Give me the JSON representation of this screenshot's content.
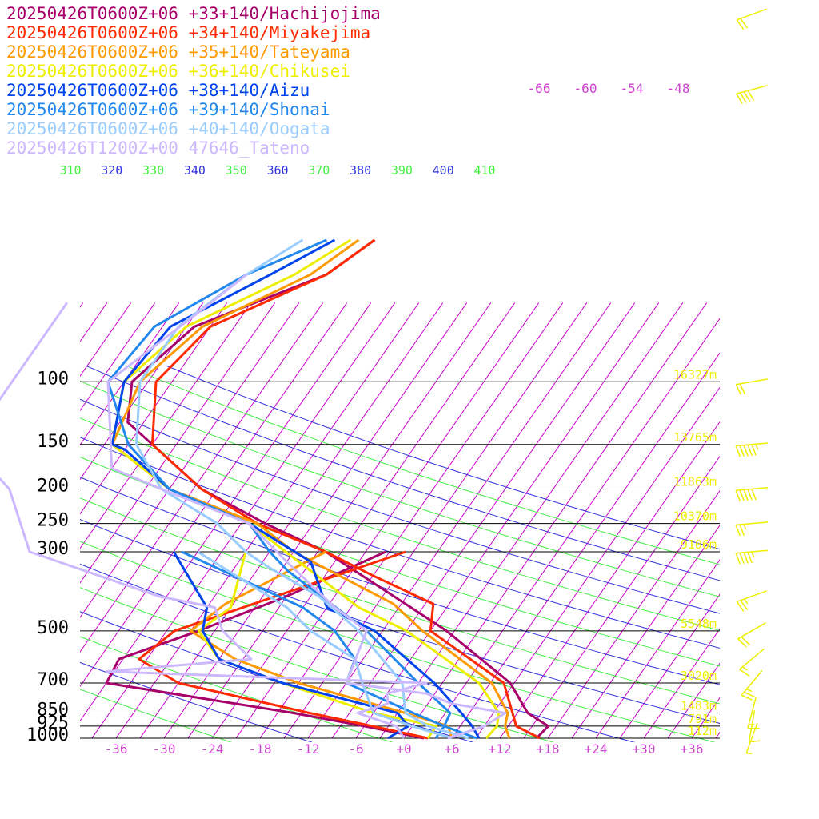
{
  "chart_data": {
    "type": "line",
    "diagram": "skew-T log-P",
    "legend_position": "top-left",
    "legend": [
      {
        "name": "20250426T0600Z+06 +33+140/Hachijojima",
        "color": "#a8006a"
      },
      {
        "name": "20250426T0600Z+06 +34+140/Miyakejima",
        "color": "#ff2a00"
      },
      {
        "name": "20250426T0600Z+06 +35+140/Tateyama",
        "color": "#ff9900"
      },
      {
        "name": "20250426T0600Z+06 +36+140/Chikusei",
        "color": "#eeee00"
      },
      {
        "name": "20250426T0600Z+06 +38+140/Aizu",
        "color": "#0044ee"
      },
      {
        "name": "20250426T0600Z+06 +39+140/Shonai",
        "color": "#2288ee"
      },
      {
        "name": "20250426T0600Z+06 +40+140/Oogata",
        "color": "#99ccff"
      },
      {
        "name": "20250426T1200Z+00 47646_Tateno",
        "color": "#ccb8ff"
      }
    ],
    "pressure_levels": [
      {
        "p": 100,
        "label": "100",
        "height": "16327m"
      },
      {
        "p": 150,
        "label": "150",
        "height": "13765m"
      },
      {
        "p": 200,
        "label": "200",
        "height": "11863m"
      },
      {
        "p": 250,
        "label": "250",
        "height": "10370m"
      },
      {
        "p": 300,
        "label": "300",
        "height": "9106m"
      },
      {
        "p": 500,
        "label": "500",
        "height": "5548m"
      },
      {
        "p": 700,
        "label": "700",
        "height": "3020m"
      },
      {
        "p": 850,
        "label": "850",
        "height": "1483m"
      },
      {
        "p": 925,
        "label": "925",
        "height": "791m"
      },
      {
        "p": 1000,
        "label": "1000",
        "height": "112m"
      }
    ],
    "x_axis": {
      "title": "",
      "ticks": [
        {
          "v": -36,
          "label": "-36"
        },
        {
          "v": -30,
          "label": "-30"
        },
        {
          "v": -24,
          "label": "-24"
        },
        {
          "v": -18,
          "label": "-18"
        },
        {
          "v": -12,
          "label": "-12"
        },
        {
          "v": -6,
          "label": "-6"
        },
        {
          "v": 0,
          "label": "+0"
        },
        {
          "v": 6,
          "label": "+6"
        },
        {
          "v": 12,
          "label": "+12"
        },
        {
          "v": 18,
          "label": "+18"
        },
        {
          "v": 24,
          "label": "+24"
        },
        {
          "v": 30,
          "label": "+30"
        },
        {
          "v": 36,
          "label": "+36"
        }
      ],
      "range": [
        -40,
        40
      ]
    },
    "upper_temperature_labels": [
      {
        "v": -66,
        "label": "-66"
      },
      {
        "v": -60,
        "label": "-60"
      },
      {
        "v": -54,
        "label": "-54"
      },
      {
        "v": -48,
        "label": "-48"
      }
    ],
    "theta_labels": [
      {
        "label": "310",
        "color": "#44ee44"
      },
      {
        "label": "320",
        "color": "#3333dd"
      },
      {
        "label": "330",
        "color": "#44ee44"
      },
      {
        "label": "340",
        "color": "#3333dd"
      },
      {
        "label": "350",
        "color": "#44ee44"
      },
      {
        "label": "360",
        "color": "#3333dd"
      },
      {
        "label": "370",
        "color": "#44ee44"
      },
      {
        "label": "380",
        "color": "#3333dd"
      },
      {
        "label": "390",
        "color": "#44ee44"
      },
      {
        "label": "400",
        "color": "#3333dd"
      },
      {
        "label": "410",
        "color": "#44ee44"
      }
    ],
    "colors": {
      "isobar": "#000000",
      "isotherm": "#cc00cc",
      "dry_adiabat_blue": "#3333dd",
      "dry_adiabat_green": "#44ee44",
      "wind_barb": "#eeee00",
      "axis_label": "#cc44cc",
      "height_label": "#eeee00"
    },
    "series": [
      {
        "name": "20250426T0600Z+06 +33+140/Hachijojima",
        "color": "#a8006a",
        "temperature": [
          [
            1000,
            16.6
          ],
          [
            925,
            17
          ],
          [
            850,
            13.3
          ],
          [
            700,
            8.5
          ],
          [
            500,
            -4
          ],
          [
            400,
            -13.6
          ],
          [
            300,
            -26
          ],
          [
            250,
            -36
          ],
          [
            200,
            -47
          ],
          [
            150,
            -57
          ],
          [
            130,
            -62
          ],
          [
            100,
            -65
          ],
          [
            70,
            -62
          ],
          [
            50,
            -50
          ],
          [
            40,
            -47
          ]
        ],
        "dewpoint": [
          [
            1000,
            2.5
          ],
          [
            925,
            -6
          ],
          [
            850,
            -16
          ],
          [
            700,
            -42
          ],
          [
            600,
            -42.5
          ],
          [
            500,
            -35
          ],
          [
            400,
            -27
          ],
          [
            300,
            -18.5
          ]
        ]
      },
      {
        "name": "20250426T0600Z+06 +34+140/Miyakejima",
        "color": "#ff2a00",
        "temperature": [
          [
            1000,
            17
          ],
          [
            925,
            13
          ],
          [
            850,
            11.4
          ],
          [
            700,
            7.7
          ],
          [
            500,
            -6
          ],
          [
            420,
            -8
          ],
          [
            350,
            -18
          ],
          [
            300,
            -26
          ],
          [
            250,
            -37
          ],
          [
            200,
            -47
          ],
          [
            150,
            -57
          ],
          [
            100,
            -62
          ],
          [
            70,
            -60
          ],
          [
            50,
            -50
          ],
          [
            40,
            -47
          ]
        ],
        "dewpoint": [
          [
            1000,
            3
          ],
          [
            925,
            -5
          ],
          [
            850,
            -14
          ],
          [
            700,
            -33
          ],
          [
            600,
            -40
          ],
          [
            500,
            -38
          ],
          [
            300,
            -16
          ]
        ]
      },
      {
        "name": "20250426T0600Z+06 +35+140/Tateyama",
        "color": "#ff9900",
        "temperature": [
          [
            1000,
            13.2
          ],
          [
            925,
            11.6
          ],
          [
            850,
            10.8
          ],
          [
            700,
            6.2
          ],
          [
            500,
            -7
          ],
          [
            420,
            -13
          ],
          [
            300,
            -30
          ],
          [
            250,
            -37
          ],
          [
            200,
            -51
          ],
          [
            150,
            -62
          ],
          [
            100,
            -64
          ],
          [
            70,
            -61
          ],
          [
            50,
            -52
          ],
          [
            40,
            -49
          ]
        ],
        "dewpoint": [
          [
            1000,
            6
          ],
          [
            925,
            4.5
          ],
          [
            850,
            -2
          ],
          [
            700,
            -18
          ],
          [
            600,
            -28
          ],
          [
            500,
            -36
          ],
          [
            420,
            -34
          ],
          [
            300,
            -26
          ]
        ]
      },
      {
        "name": "20250426T0600Z+06 +36+140/Chikusei",
        "color": "#eeee00",
        "temperature": [
          [
            1000,
            10.3
          ],
          [
            925,
            10.6
          ],
          [
            850,
            9.7
          ],
          [
            700,
            4.6
          ],
          [
            500,
            -9
          ],
          [
            430,
            -17
          ],
          [
            300,
            -31
          ],
          [
            250,
            -38
          ],
          [
            200,
            -51
          ],
          [
            150,
            -62
          ],
          [
            100,
            -66
          ],
          [
            70,
            -63
          ],
          [
            50,
            -54
          ],
          [
            40,
            -50
          ]
        ],
        "dewpoint": [
          [
            1000,
            3
          ],
          [
            925,
            3
          ],
          [
            850,
            -6
          ],
          [
            700,
            -20
          ],
          [
            600,
            -30
          ],
          [
            500,
            -35
          ],
          [
            430,
            -33
          ],
          [
            300,
            -36
          ]
        ]
      },
      {
        "name": "20250426T0600Z+06 +38+140/Aizu",
        "color": "#0044ee",
        "temperature": [
          [
            1000,
            9.4
          ],
          [
            925,
            7.5
          ],
          [
            850,
            5
          ],
          [
            700,
            -1
          ],
          [
            500,
            -13
          ],
          [
            430,
            -21
          ],
          [
            320,
            -27
          ],
          [
            250,
            -38
          ],
          [
            200,
            -51
          ],
          [
            155,
            -60
          ],
          [
            150,
            -62
          ],
          [
            100,
            -66
          ],
          [
            70,
            -65
          ],
          [
            50,
            -57
          ],
          [
            40,
            -52
          ]
        ],
        "dewpoint": [
          [
            1000,
            -2
          ],
          [
            925,
            -0.5
          ],
          [
            850,
            -3
          ],
          [
            700,
            -20
          ],
          [
            600,
            -30
          ],
          [
            500,
            -34.5
          ],
          [
            430,
            -36
          ],
          [
            300,
            -45
          ]
        ]
      },
      {
        "name": "20250426T0600Z+06 +39+140/Shonai",
        "color": "#2288ee",
        "temperature": [
          [
            1000,
            9.1
          ],
          [
            925,
            4
          ],
          [
            850,
            3.6
          ],
          [
            700,
            -3
          ],
          [
            500,
            -14
          ],
          [
            340,
            -29
          ],
          [
            300,
            -33
          ],
          [
            250,
            -38
          ],
          [
            200,
            -51
          ],
          [
            150,
            -60
          ],
          [
            100,
            -68
          ],
          [
            70,
            -67
          ],
          [
            50,
            -60
          ],
          [
            40,
            -53
          ]
        ],
        "dewpoint": [
          [
            1000,
            4
          ],
          [
            925,
            4
          ],
          [
            850,
            -1
          ],
          [
            700,
            -12
          ],
          [
            600,
            -13
          ],
          [
            500,
            -18
          ],
          [
            430,
            -24
          ],
          [
            300,
            -44
          ]
        ]
      },
      {
        "name": "20250426T0600Z+06 +40+140/Oogata",
        "color": "#99ccff",
        "temperature": [
          [
            1000,
            8.1
          ],
          [
            925,
            2
          ],
          [
            850,
            -2
          ],
          [
            700,
            -5
          ],
          [
            500,
            -15
          ],
          [
            400,
            -23
          ],
          [
            330,
            -32
          ],
          [
            300,
            -36
          ],
          [
            250,
            -42
          ],
          [
            200,
            -52
          ],
          [
            150,
            -59
          ],
          [
            100,
            -64
          ],
          [
            70,
            -64
          ],
          [
            50,
            -60
          ],
          [
            40,
            -56
          ]
        ],
        "dewpoint": [
          [
            1000,
            6
          ],
          [
            925,
            0
          ],
          [
            850,
            -6
          ],
          [
            700,
            -10
          ],
          [
            600,
            -13
          ],
          [
            500,
            -21
          ],
          [
            430,
            -26
          ],
          [
            300,
            -42
          ]
        ]
      },
      {
        "name": "20250426T1200Z+00 47646_Tateno",
        "color": "#ccb8ff",
        "temperature": [
          [
            1000,
            5.5
          ],
          [
            925,
            9
          ],
          [
            850,
            10.5
          ],
          [
            800,
            3
          ],
          [
            750,
            -1
          ],
          [
            700,
            -12
          ],
          [
            500,
            -14
          ],
          [
            430,
            -20
          ],
          [
            320,
            -30
          ],
          [
            250,
            -38
          ],
          [
            200,
            -52
          ],
          [
            175,
            -60
          ],
          [
            100,
            -68
          ],
          [
            60,
            -62
          ],
          [
            50,
            -60
          ]
        ],
        "dewpoint": [
          [
            1000,
            0
          ],
          [
            925,
            -2
          ],
          [
            850,
            -8
          ],
          [
            800,
            -5
          ],
          [
            750,
            -6
          ],
          [
            700,
            -2
          ],
          [
            650,
            -43
          ],
          [
            600,
            -26
          ],
          [
            500,
            -32
          ],
          [
            430,
            -35
          ],
          [
            400,
            -43
          ],
          [
            300,
            -63
          ],
          [
            200,
            -71
          ],
          [
            150,
            -80
          ],
          [
            100,
            -80
          ],
          [
            70,
            -80
          ],
          [
            60,
            -80
          ]
        ]
      }
    ],
    "wind_barbs": [
      {
        "p": 30,
        "y_rel": 0.0,
        "dir": 250,
        "kt": 20
      },
      {
        "p": 60,
        "dir": 255,
        "kt": 40
      },
      {
        "p": 100,
        "dir": 260,
        "kt": 20
      },
      {
        "p": 150,
        "dir": 265,
        "kt": 55
      },
      {
        "p": 200,
        "dir": 265,
        "kt": 50
      },
      {
        "p": 250,
        "dir": 265,
        "kt": 25
      },
      {
        "p": 300,
        "dir": 265,
        "kt": 45
      },
      {
        "p": 400,
        "dir": 250,
        "kt": 25
      },
      {
        "p": 500,
        "dir": 240,
        "kt": 20
      },
      {
        "p": 600,
        "dir": 230,
        "kt": 15
      },
      {
        "p": 700,
        "dir": 220,
        "kt": 25
      },
      {
        "p": 850,
        "dir": 195,
        "kt": 15
      },
      {
        "p": 925,
        "dir": 190,
        "kt": 10
      },
      {
        "p": 1000,
        "dir": 200,
        "kt": 5
      }
    ]
  }
}
